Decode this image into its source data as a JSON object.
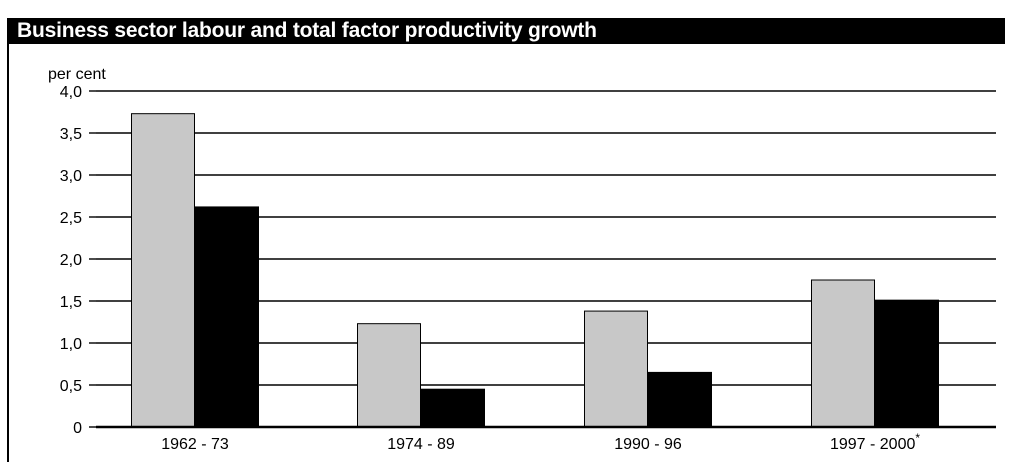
{
  "header": {
    "title": "Business sector labour and total factor productivity growth"
  },
  "chart_data": {
    "type": "bar",
    "title": "Business sector labour and total factor productivity growth",
    "ylabel": "per cent",
    "xlabel": "",
    "ylim": [
      0,
      4.0
    ],
    "yticks": [
      0,
      0.5,
      1.0,
      1.5,
      2.0,
      2.5,
      3.0,
      3.5,
      4.0
    ],
    "ytick_labels": [
      "0",
      "0,5",
      "1,0",
      "1,5",
      "2,0",
      "2,5",
      "3,0",
      "3,5",
      "4,0"
    ],
    "grid": true,
    "legend": "none",
    "categories": [
      "1962 - 73",
      "1974 - 89",
      "1990 - 96",
      "1997 - 2000"
    ],
    "category_footnote_marks": [
      "",
      "",
      "",
      "*"
    ],
    "series": [
      {
        "color": "#c8c8c8",
        "values": [
          3.73,
          1.23,
          1.38,
          1.75
        ]
      },
      {
        "color": "#000000",
        "values": [
          2.62,
          0.45,
          0.65,
          1.51
        ]
      }
    ]
  }
}
